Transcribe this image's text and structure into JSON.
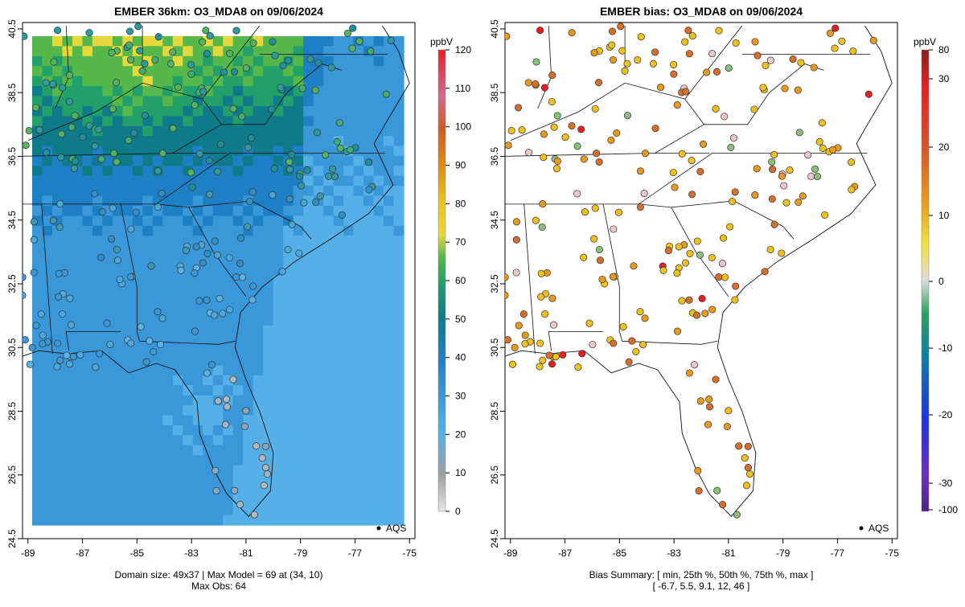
{
  "left": {
    "title": "EMBER 36km: O3_MDA8 on 09/06/2024",
    "footer_line1": "Domain size: 49x37 | Max Model = 69 at (34, 10)",
    "footer_line2": "Max Obs: 64",
    "legend_label": "AQS",
    "colorbar_unit": "ppbV",
    "colorbar_ticks": [
      0,
      10,
      20,
      30,
      40,
      50,
      60,
      70,
      80,
      90,
      100,
      110,
      120
    ],
    "colorbar_colors": [
      "#e6e6e6",
      "#9e9e9e",
      "#56b0e8",
      "#1f7fc4",
      "#0f7b8a",
      "#23a06a",
      "#56b84a",
      "#e6d83a",
      "#eec21a",
      "#dd8d14",
      "#d35a1e",
      "#d06a92",
      "#e8202a"
    ]
  },
  "right": {
    "title": "EMBER bias: O3_MDA8 on 09/06/2024",
    "footer_line1": "Bias Summary: [ min, 25th %, 50th %, 75th %, max ]",
    "footer_line2": "[ -6.7,   5.5,   9.1,   12,   46 ]",
    "legend_label": "AQS",
    "colorbar_unit": "ppbV",
    "colorbar_ticks": [
      "80",
      "30",
      "20",
      "10",
      "0",
      "-10",
      "-20",
      "-30",
      "-100"
    ],
    "colorbar_colors": [
      "#8a1f1f",
      "#e62020",
      "#d5502a",
      "#e89a1c",
      "#f0e23a",
      "#dddddd",
      "#2aa060",
      "#0f7aa8",
      "#2030e0",
      "#6a30c0",
      "#4b2580"
    ]
  },
  "axes": {
    "x_ticks": [
      "-89",
      "-87",
      "-85",
      "-83",
      "-81",
      "-79",
      "-77",
      "-75"
    ],
    "y_ticks": [
      "40.5",
      "38.5",
      "36.5",
      "34.5",
      "32.5",
      "30.5",
      "28.5",
      "26.5",
      "24.5"
    ]
  },
  "map_data": {
    "type": "map",
    "region": "Southeastern United States",
    "x_range": [
      -89.2,
      -74.8
    ],
    "y_range": [
      24.5,
      40.7
    ],
    "left_panel": {
      "variable": "O3_MDA8 model",
      "unit": "ppbV",
      "color_range": [
        0,
        120
      ],
      "max_model": 69,
      "max_obs": 64,
      "domain_size": "49x37"
    },
    "right_panel": {
      "variable": "bias",
      "unit": "ppbV",
      "bias_summary": {
        "min": -6.7,
        "p25": 5.5,
        "p50": 9.1,
        "p75": 12,
        "max": 46
      }
    }
  }
}
